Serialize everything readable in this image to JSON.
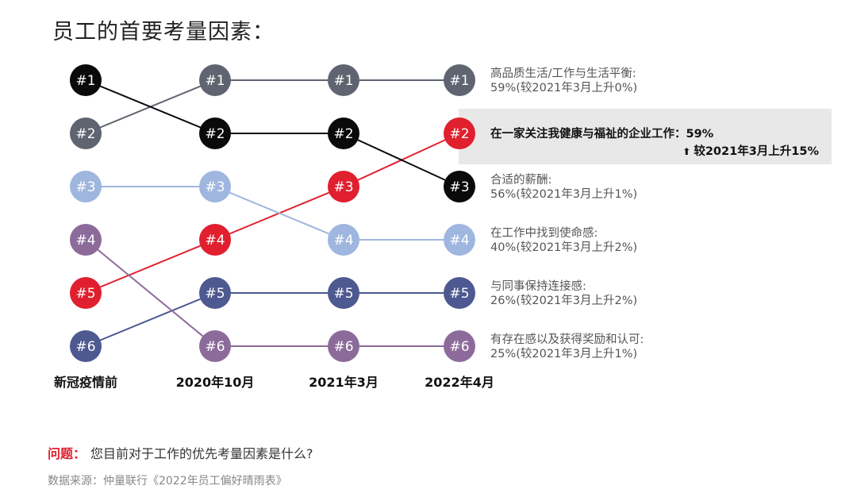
{
  "title": "员工的首要考量因素：",
  "chart_data": {
    "type": "bump",
    "title": "员工的首要考量因素：",
    "periods": [
      "新冠疫情前",
      "2020年10月",
      "2021年3月",
      "2022年4月"
    ],
    "rank_labels": [
      "#1",
      "#2",
      "#3",
      "#4",
      "#5",
      "#6"
    ],
    "series": [
      {
        "id": "balance",
        "color": "#5f6470",
        "ranks": [
          2,
          1,
          1,
          1
        ]
      },
      {
        "id": "wellbeing",
        "color": "#e0202e",
        "ranks": [
          5,
          4,
          3,
          2
        ]
      },
      {
        "id": "pay",
        "color": "#0a0a0a",
        "ranks": [
          1,
          2,
          2,
          3
        ]
      },
      {
        "id": "mission",
        "color": "#9fb6df",
        "ranks": [
          3,
          3,
          4,
          4
        ]
      },
      {
        "id": "connection",
        "color": "#4d5990",
        "ranks": [
          6,
          5,
          5,
          5
        ]
      },
      {
        "id": "reward",
        "color": "#8c6b9b",
        "ranks": [
          4,
          6,
          6,
          6
        ]
      }
    ],
    "factors": [
      {
        "name": "高品质生活/工作与生活平衡:",
        "stat": "59%(较2021年3月上升0%)",
        "highlight": false
      },
      {
        "name": "在一家关注我健康与福祉的企业工作：59%",
        "stat": "较2021年3月上升15%",
        "highlight": true
      },
      {
        "name": "合适的薪酬:",
        "stat": "56%(较2021年3月上升1%)",
        "highlight": false
      },
      {
        "name": "在工作中找到使命感:",
        "stat": "40%(较2021年3月上升2%)",
        "highlight": false
      },
      {
        "name": "与同事保持连接感:",
        "stat": "26%(较2021年3月上升2%)",
        "highlight": false
      },
      {
        "name": "有存在感以及获得奖励和认可:",
        "stat": "25%(较2021年3月上升1%)",
        "highlight": false
      }
    ]
  },
  "footer": {
    "question_label": "问题：",
    "question": "您目前对于工作的优先考量因素是什么?",
    "source": "数据来源：仲量联行《2022年员工偏好晴雨表》"
  }
}
